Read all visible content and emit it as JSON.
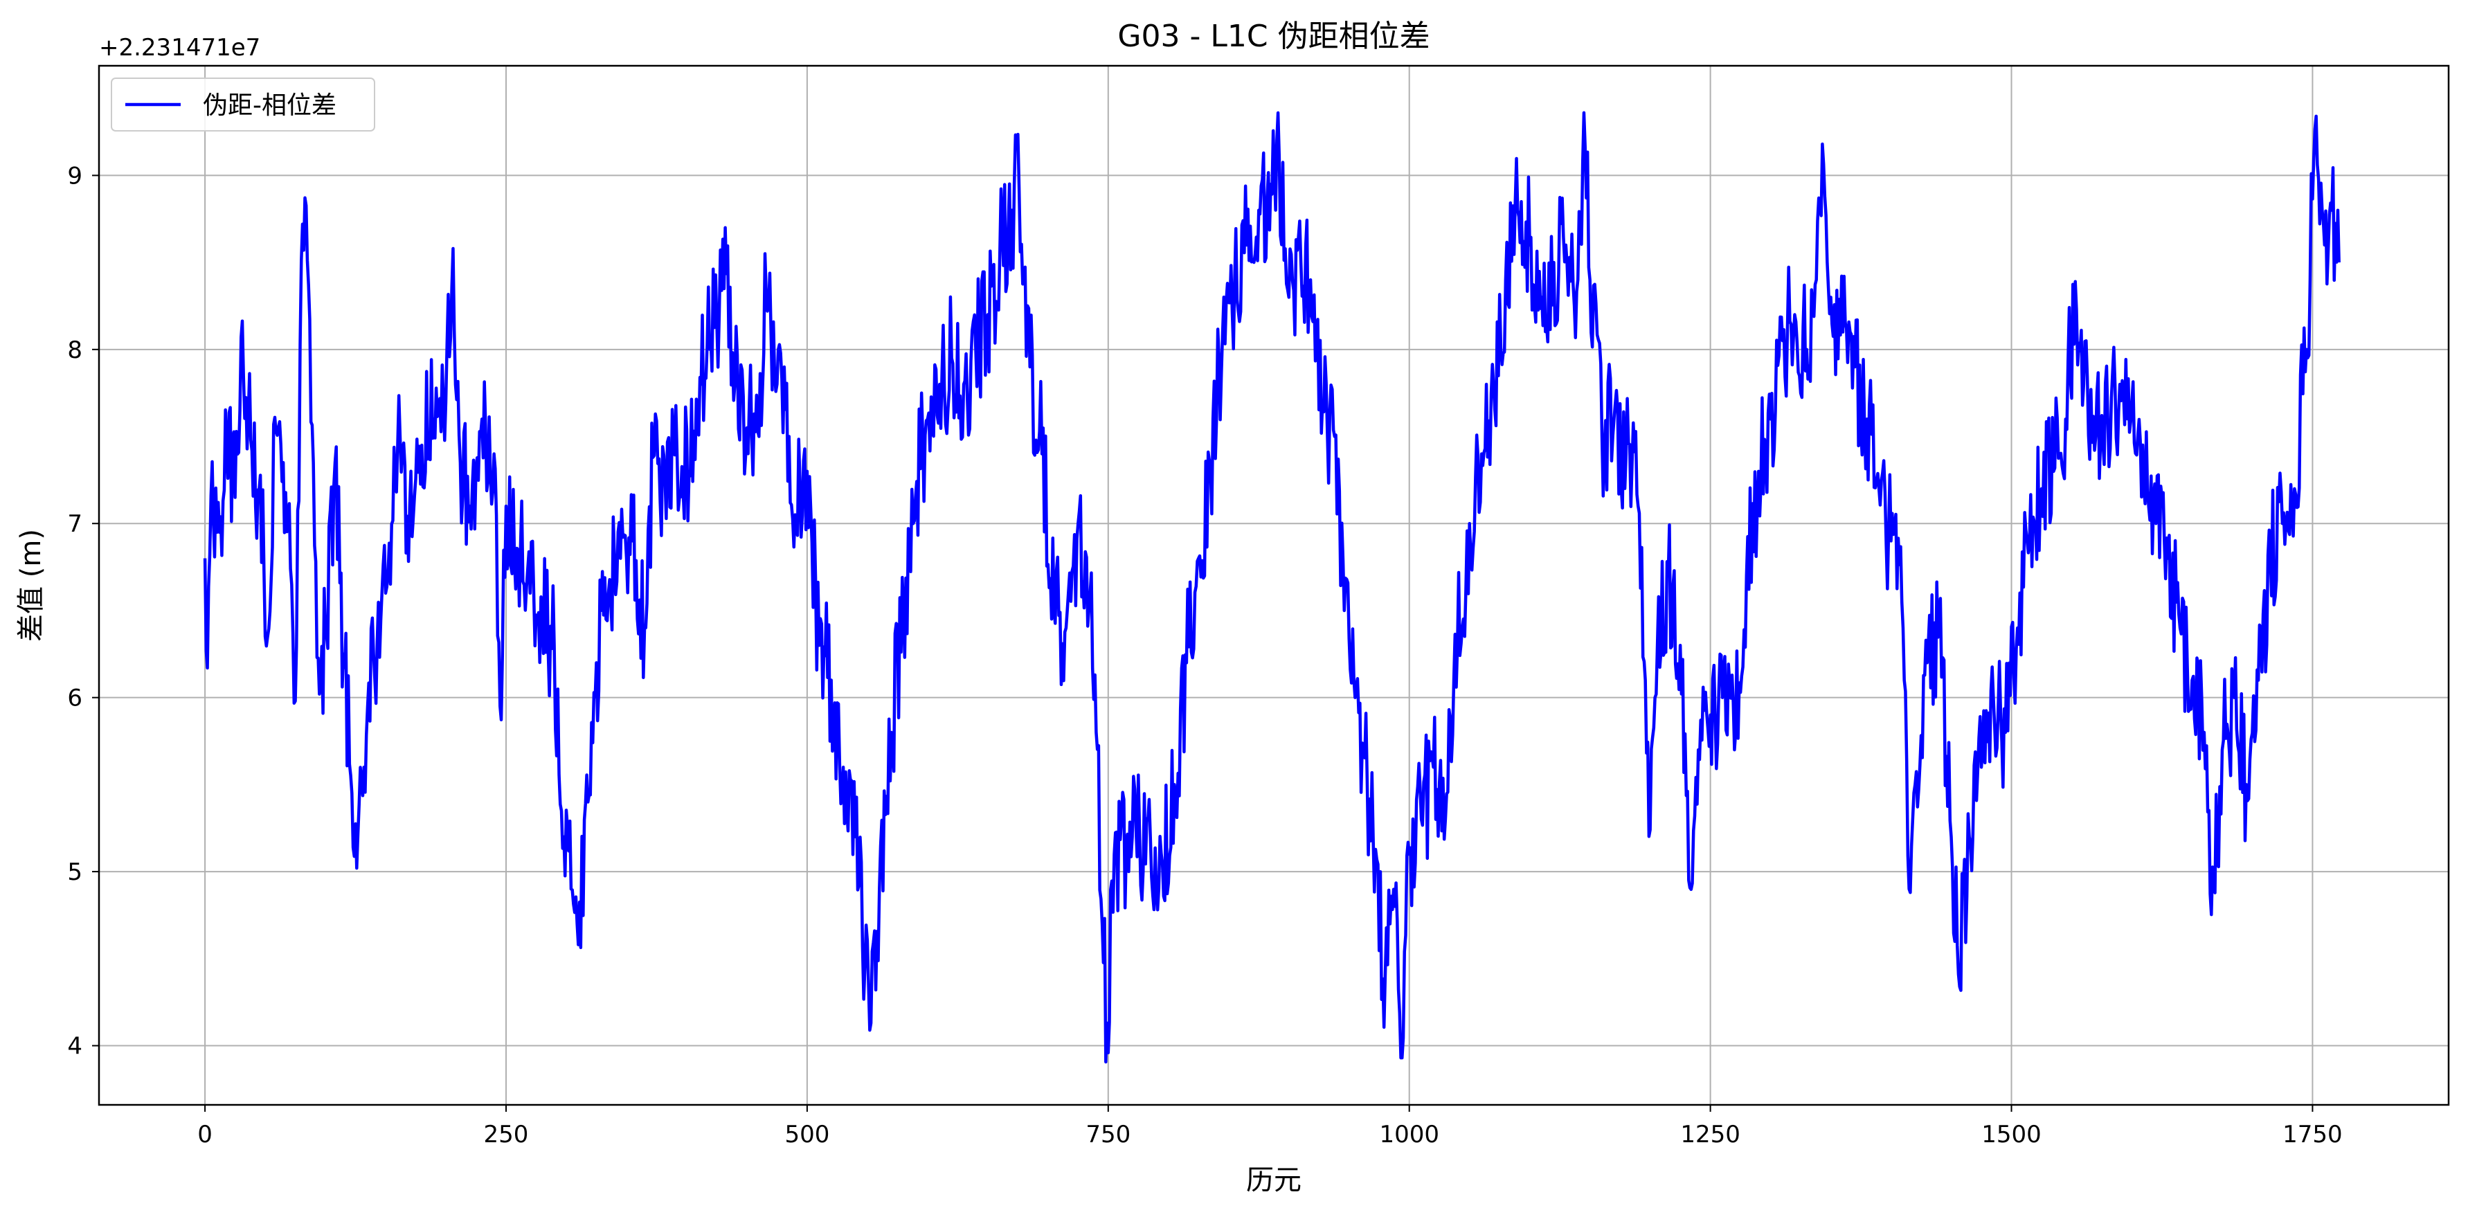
{
  "chart_data": {
    "type": "line",
    "title": "G03 - L1C 伪距相位差",
    "xlabel": "历元",
    "ylabel": "差值 (m)",
    "y_offset_label": "+2.231471e7",
    "xlim": [
      -88,
      1863
    ],
    "ylim": [
      3.66,
      9.63
    ],
    "xticks": [
      0,
      250,
      500,
      750,
      1000,
      1250,
      1500,
      1750
    ],
    "yticks": [
      4,
      5,
      6,
      7,
      8,
      9
    ],
    "grid": true,
    "legend_position": "top-left",
    "series": [
      {
        "name": "伪距-相位差",
        "color": "#0000ff",
        "x_start": 0,
        "x_end": 1772,
        "keypoints": [
          [
            0,
            6.8
          ],
          [
            2,
            6.17
          ],
          [
            5,
            7.16
          ],
          [
            10,
            6.95
          ],
          [
            18,
            7.43
          ],
          [
            25,
            7.15
          ],
          [
            30,
            8.07
          ],
          [
            38,
            7.48
          ],
          [
            45,
            7.2
          ],
          [
            52,
            6.35
          ],
          [
            58,
            7.61
          ],
          [
            65,
            7.35
          ],
          [
            72,
            6.65
          ],
          [
            75,
            5.98
          ],
          [
            80,
            8.51
          ],
          [
            85,
            8.51
          ],
          [
            90,
            7.35
          ],
          [
            95,
            6.02
          ],
          [
            100,
            6.4
          ],
          [
            108,
            7.35
          ],
          [
            115,
            6.25
          ],
          [
            122,
            5.45
          ],
          [
            126,
            5.02
          ],
          [
            132,
            5.6
          ],
          [
            140,
            6.25
          ],
          [
            150,
            6.6
          ],
          [
            160,
            7.45
          ],
          [
            170,
            7.1
          ],
          [
            180,
            7.45
          ],
          [
            190,
            7.6
          ],
          [
            200,
            7.7
          ],
          [
            206,
            8.58
          ],
          [
            212,
            7.35
          ],
          [
            220,
            7.1
          ],
          [
            230,
            7.6
          ],
          [
            240,
            7.4
          ],
          [
            245,
            5.95
          ],
          [
            250,
            7.1
          ],
          [
            260,
            6.85
          ],
          [
            270,
            6.6
          ],
          [
            280,
            6.5
          ],
          [
            290,
            6.3
          ],
          [
            298,
            5.2
          ],
          [
            304,
            4.9
          ],
          [
            310,
            4.58
          ],
          [
            318,
            5.4
          ],
          [
            325,
            6.2
          ],
          [
            335,
            6.6
          ],
          [
            345,
            6.8
          ],
          [
            355,
            6.9
          ],
          [
            365,
            6.4
          ],
          [
            372,
            7.38
          ],
          [
            382,
            7.25
          ],
          [
            392,
            7.4
          ],
          [
            402,
            7.3
          ],
          [
            412,
            7.8
          ],
          [
            420,
            8.05
          ],
          [
            425,
            8.15
          ],
          [
            432,
            8.7
          ],
          [
            440,
            7.8
          ],
          [
            450,
            7.55
          ],
          [
            460,
            7.5
          ],
          [
            465,
            8.55
          ],
          [
            475,
            7.8
          ],
          [
            485,
            7.5
          ],
          [
            490,
            7.05
          ],
          [
            500,
            7.3
          ],
          [
            510,
            6.3
          ],
          [
            520,
            6.1
          ],
          [
            530,
            5.6
          ],
          [
            540,
            5.2
          ],
          [
            548,
            4.45
          ],
          [
            553,
            4.13
          ],
          [
            560,
            4.9
          ],
          [
            570,
            5.8
          ],
          [
            580,
            6.5
          ],
          [
            590,
            7.15
          ],
          [
            600,
            7.6
          ],
          [
            610,
            7.8
          ],
          [
            620,
            7.95
          ],
          [
            630,
            7.8
          ],
          [
            640,
            8.0
          ],
          [
            650,
            8.2
          ],
          [
            660,
            8.55
          ],
          [
            670,
            8.8
          ],
          [
            676,
            8.93
          ],
          [
            685,
            7.9
          ],
          [
            695,
            7.4
          ],
          [
            705,
            6.5
          ],
          [
            715,
            6.4
          ],
          [
            725,
            7.0
          ],
          [
            735,
            6.6
          ],
          [
            740,
            5.8
          ],
          [
            745,
            4.7
          ],
          [
            749,
            4.13
          ],
          [
            755,
            5.1
          ],
          [
            770,
            5.2
          ],
          [
            785,
            5.2
          ],
          [
            795,
            5.05
          ],
          [
            805,
            5.5
          ],
          [
            815,
            6.2
          ],
          [
            825,
            6.8
          ],
          [
            835,
            7.3
          ],
          [
            845,
            8.1
          ],
          [
            855,
            8.4
          ],
          [
            865,
            8.6
          ],
          [
            875,
            8.8
          ],
          [
            885,
            8.95
          ],
          [
            892,
            9.11
          ],
          [
            900,
            8.3
          ],
          [
            910,
            8.5
          ],
          [
            918,
            8.4
          ],
          [
            928,
            7.7
          ],
          [
            938,
            7.5
          ],
          [
            946,
            6.5
          ],
          [
            955,
            6.0
          ],
          [
            962,
            5.7
          ],
          [
            970,
            5.2
          ],
          [
            980,
            4.4
          ],
          [
            988,
            4.8
          ],
          [
            993,
            3.93
          ],
          [
            1000,
            5.1
          ],
          [
            1010,
            5.3
          ],
          [
            1020,
            5.6
          ],
          [
            1030,
            5.3
          ],
          [
            1040,
            6.3
          ],
          [
            1050,
            7.0
          ],
          [
            1060,
            7.4
          ],
          [
            1070,
            7.8
          ],
          [
            1080,
            8.4
          ],
          [
            1090,
            8.8
          ],
          [
            1100,
            8.6
          ],
          [
            1110,
            8.3
          ],
          [
            1120,
            8.5
          ],
          [
            1130,
            8.6
          ],
          [
            1140,
            8.4
          ],
          [
            1145,
            9.36
          ],
          [
            1150,
            8.4
          ],
          [
            1160,
            7.5
          ],
          [
            1170,
            7.6
          ],
          [
            1180,
            7.4
          ],
          [
            1190,
            7.1
          ],
          [
            1196,
            6.1
          ],
          [
            1200,
            5.24
          ],
          [
            1206,
            6.3
          ],
          [
            1215,
            6.7
          ],
          [
            1225,
            6.3
          ],
          [
            1232,
            4.95
          ],
          [
            1240,
            5.7
          ],
          [
            1250,
            5.9
          ],
          [
            1260,
            6.0
          ],
          [
            1270,
            5.7
          ],
          [
            1280,
            6.7
          ],
          [
            1290,
            7.3
          ],
          [
            1300,
            7.6
          ],
          [
            1310,
            8.05
          ],
          [
            1320,
            8.2
          ],
          [
            1330,
            8.0
          ],
          [
            1338,
            8.4
          ],
          [
            1343,
            9.18
          ],
          [
            1350,
            8.3
          ],
          [
            1360,
            8.1
          ],
          [
            1370,
            7.9
          ],
          [
            1380,
            7.6
          ],
          [
            1390,
            7.2
          ],
          [
            1400,
            6.9
          ],
          [
            1410,
            6.4
          ],
          [
            1415,
            4.9
          ],
          [
            1420,
            5.5
          ],
          [
            1430,
            6.2
          ],
          [
            1440,
            6.4
          ],
          [
            1450,
            5.2
          ],
          [
            1456,
            4.41
          ],
          [
            1465,
            5.2
          ],
          [
            1475,
            5.6
          ],
          [
            1485,
            6.0
          ],
          [
            1495,
            5.8
          ],
          [
            1505,
            6.4
          ],
          [
            1515,
            6.9
          ],
          [
            1525,
            7.2
          ],
          [
            1535,
            7.3
          ],
          [
            1545,
            7.6
          ],
          [
            1553,
            8.39
          ],
          [
            1560,
            7.8
          ],
          [
            1570,
            7.5
          ],
          [
            1580,
            7.6
          ],
          [
            1590,
            7.8
          ],
          [
            1600,
            7.7
          ],
          [
            1610,
            7.2
          ],
          [
            1620,
            7.0
          ],
          [
            1630,
            6.8
          ],
          [
            1640,
            6.4
          ],
          [
            1650,
            6.1
          ],
          [
            1660,
            5.8
          ],
          [
            1668,
            4.9
          ],
          [
            1675,
            5.7
          ],
          [
            1685,
            6.0
          ],
          [
            1695,
            5.5
          ],
          [
            1705,
            6.1
          ],
          [
            1715,
            6.8
          ],
          [
            1725,
            7.0
          ],
          [
            1735,
            7.2
          ],
          [
            1745,
            8.0
          ],
          [
            1753,
            9.34
          ],
          [
            1760,
            8.6
          ],
          [
            1766,
            8.8
          ],
          [
            1772,
            8.5
          ]
        ]
      }
    ]
  }
}
